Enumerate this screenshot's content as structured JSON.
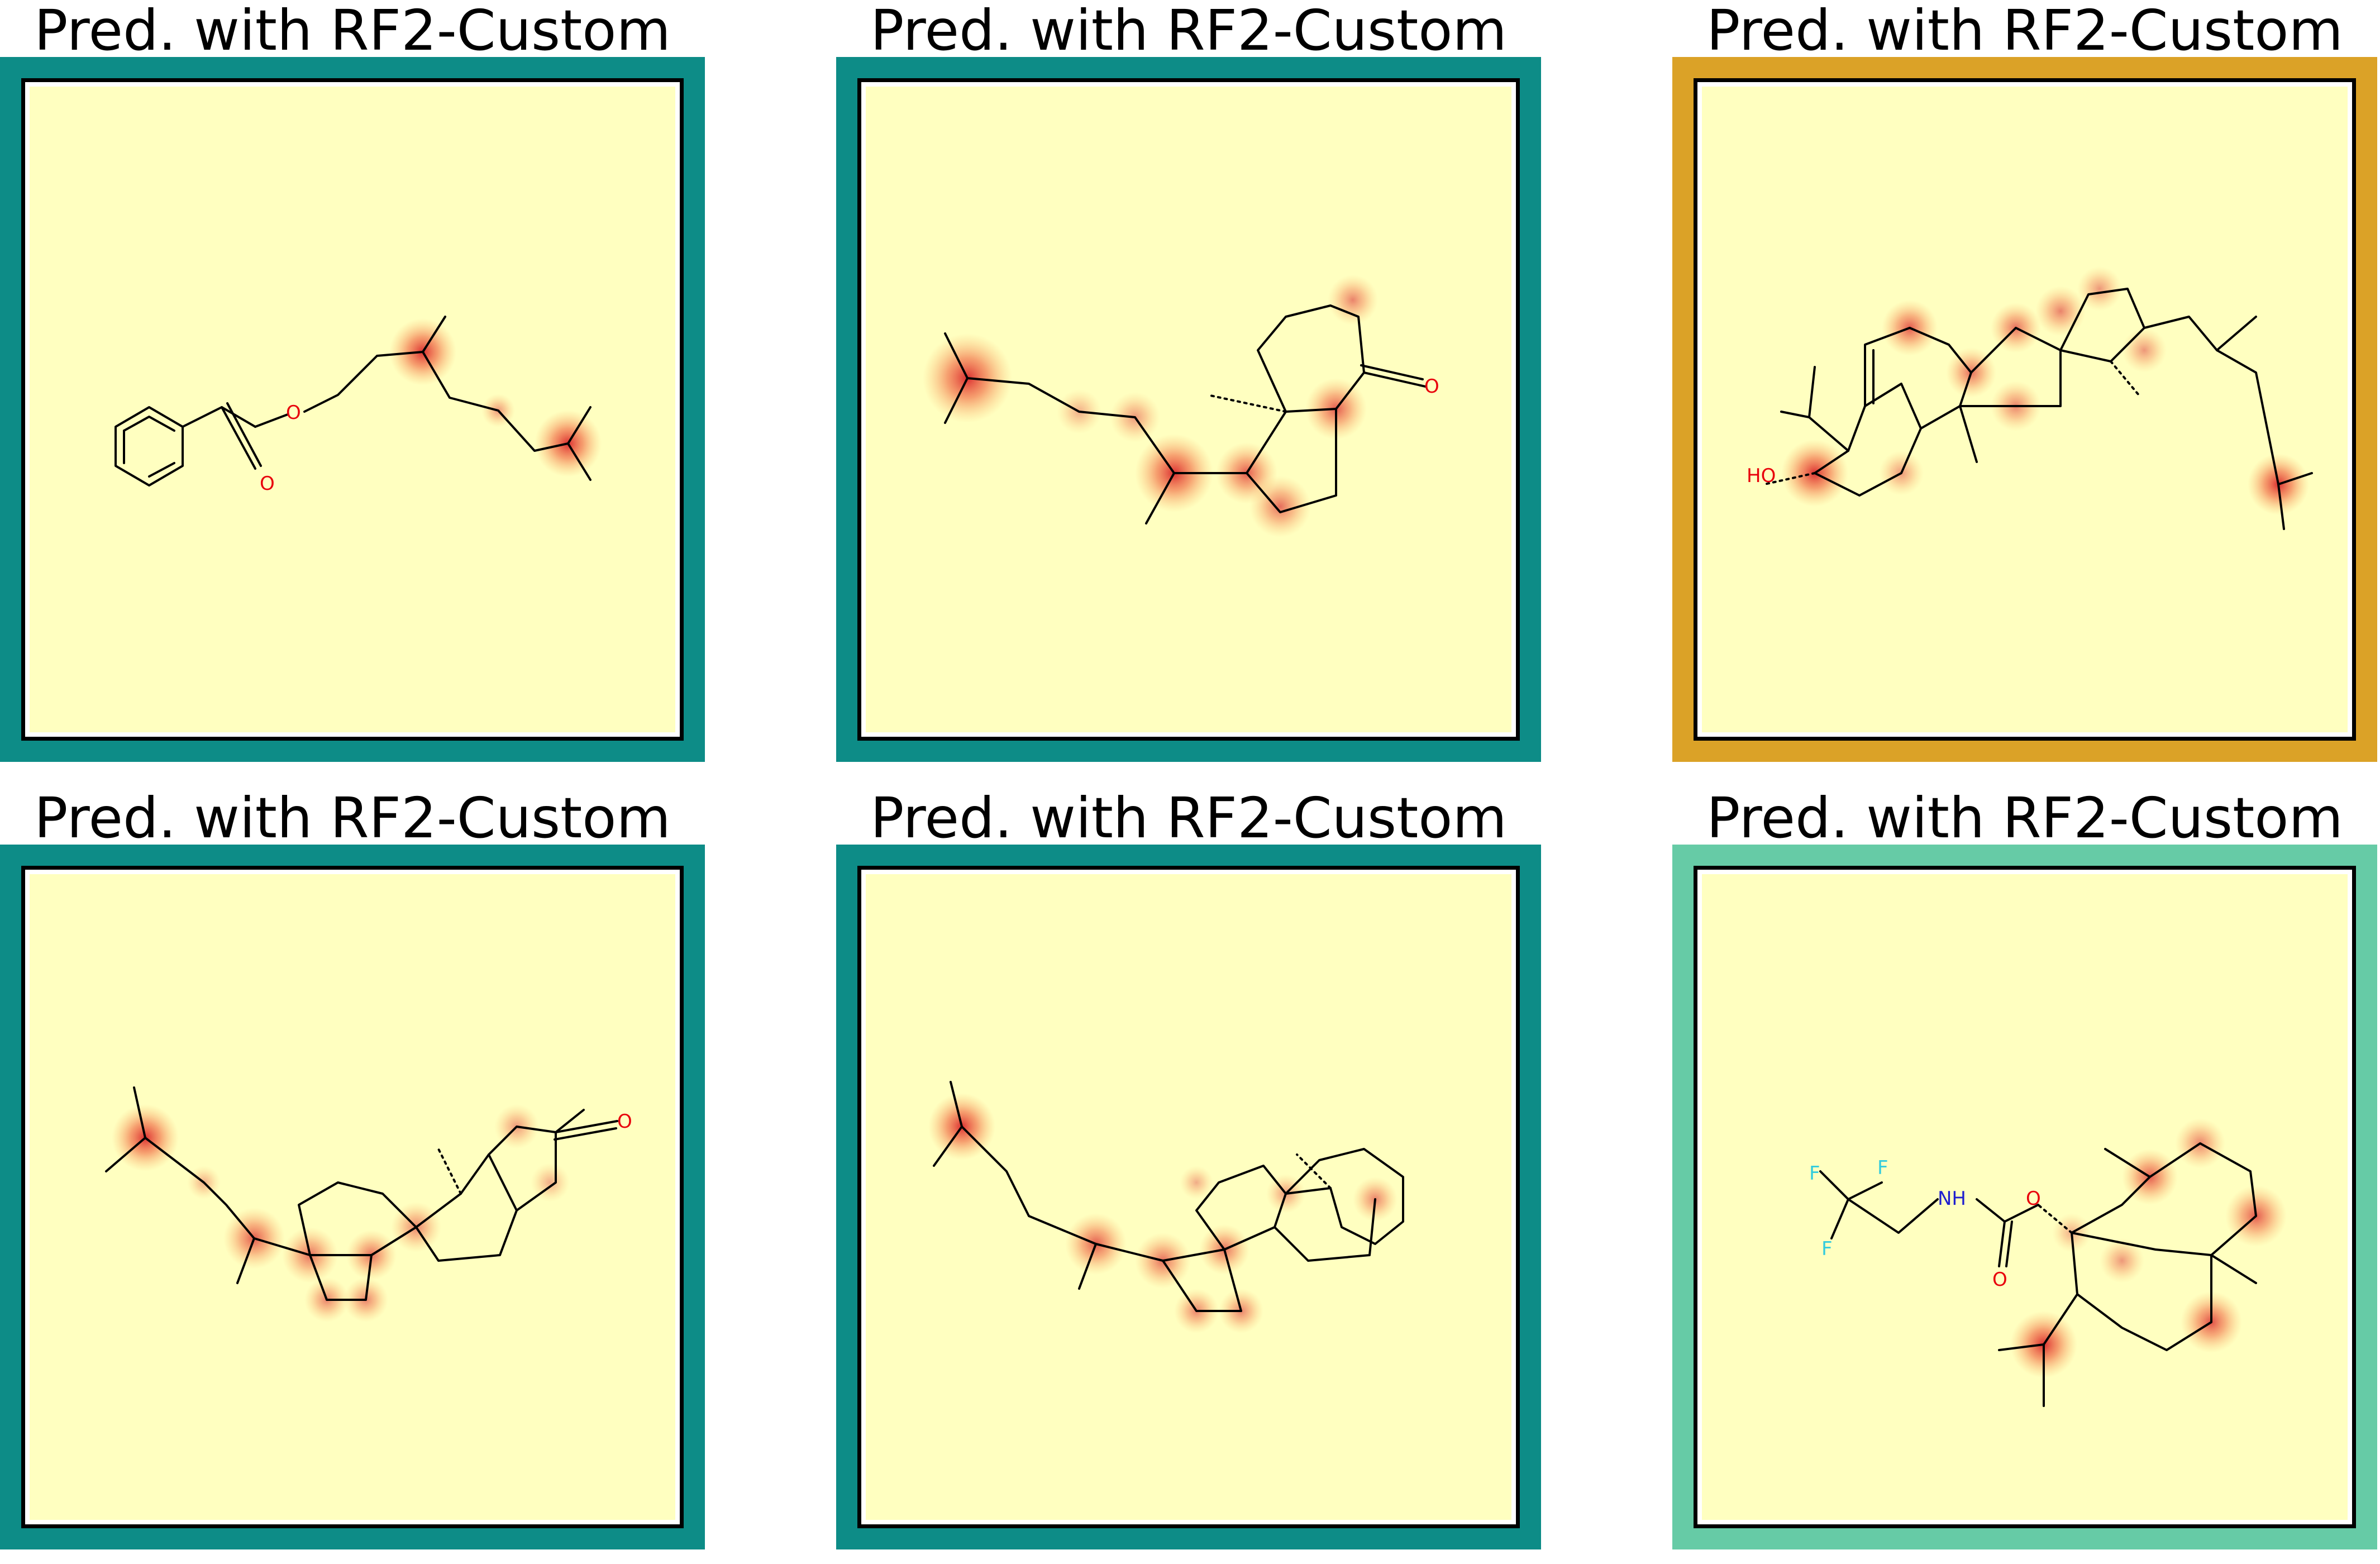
{
  "colors": {
    "teal": "#0d8c87",
    "gold": "#dba227",
    "mint": "#66cba6",
    "panel_bg": "#ffffc0",
    "highlight": "#e8402a"
  },
  "panels": [
    {
      "title": "Pred. with RF2-Custom",
      "border": "teal",
      "labels": [
        "O",
        "O"
      ]
    },
    {
      "title": "Pred. with RF2-Custom",
      "border": "teal",
      "labels": [
        "O"
      ]
    },
    {
      "title": "Pred. with RF2-Custom",
      "border": "gold",
      "labels": [
        "HO"
      ]
    },
    {
      "title": "Pred. with RF2-Custom",
      "border": "teal",
      "labels": [
        "O"
      ]
    },
    {
      "title": "Pred. with RF2-Custom",
      "border": "teal",
      "labels": []
    },
    {
      "title": "Pred. with RF2-Custom",
      "border": "mint",
      "labels": [
        "F",
        "F",
        "F",
        "NH",
        "O",
        "O"
      ]
    }
  ]
}
